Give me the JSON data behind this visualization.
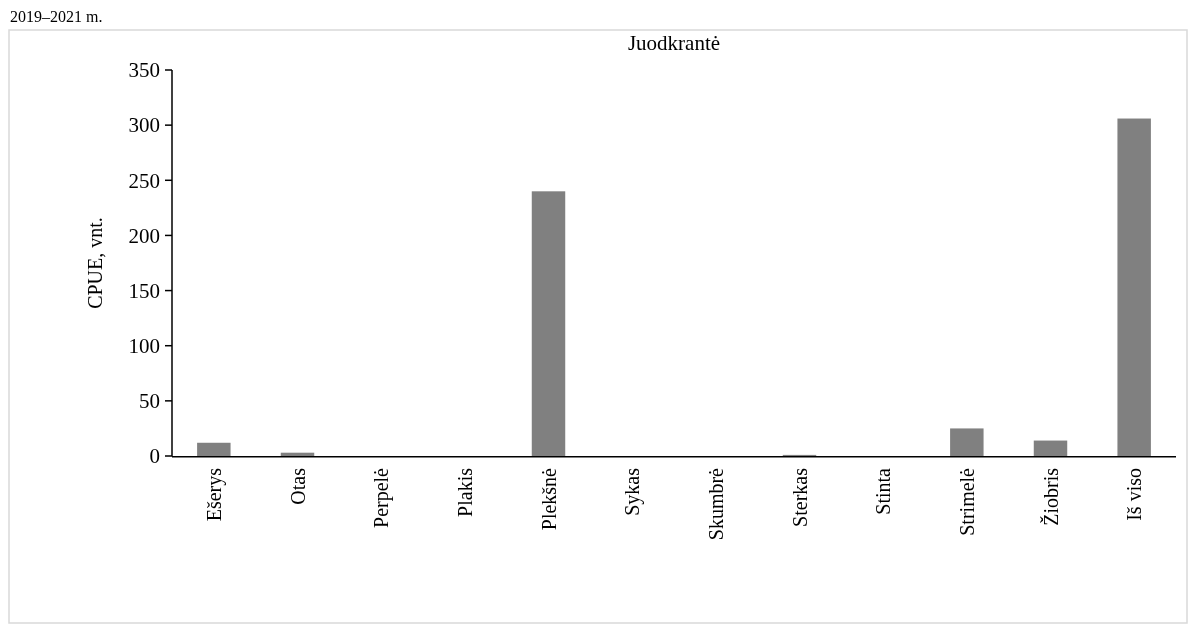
{
  "chart_data": {
    "type": "bar",
    "title": "Juodkrantė",
    "ylabel": "CPUE, vnt.",
    "annotations": [
      "2019–2021 m."
    ],
    "categories": [
      "Ešerys",
      "Otas",
      "Perpelė",
      "Plakis",
      "Plekšnė",
      "Sykas",
      "Skumbrė",
      "Sterkas",
      "Stinta",
      "Strimelė",
      "Žiobris",
      "Iš viso"
    ],
    "values": [
      12,
      3,
      0,
      0,
      240,
      0,
      0,
      1,
      0,
      25,
      14,
      306
    ],
    "color": "#808080",
    "ylim": [
      0,
      350
    ],
    "yticks": [
      0,
      50,
      100,
      150,
      200,
      250,
      300,
      350
    ],
    "grid": false
  }
}
